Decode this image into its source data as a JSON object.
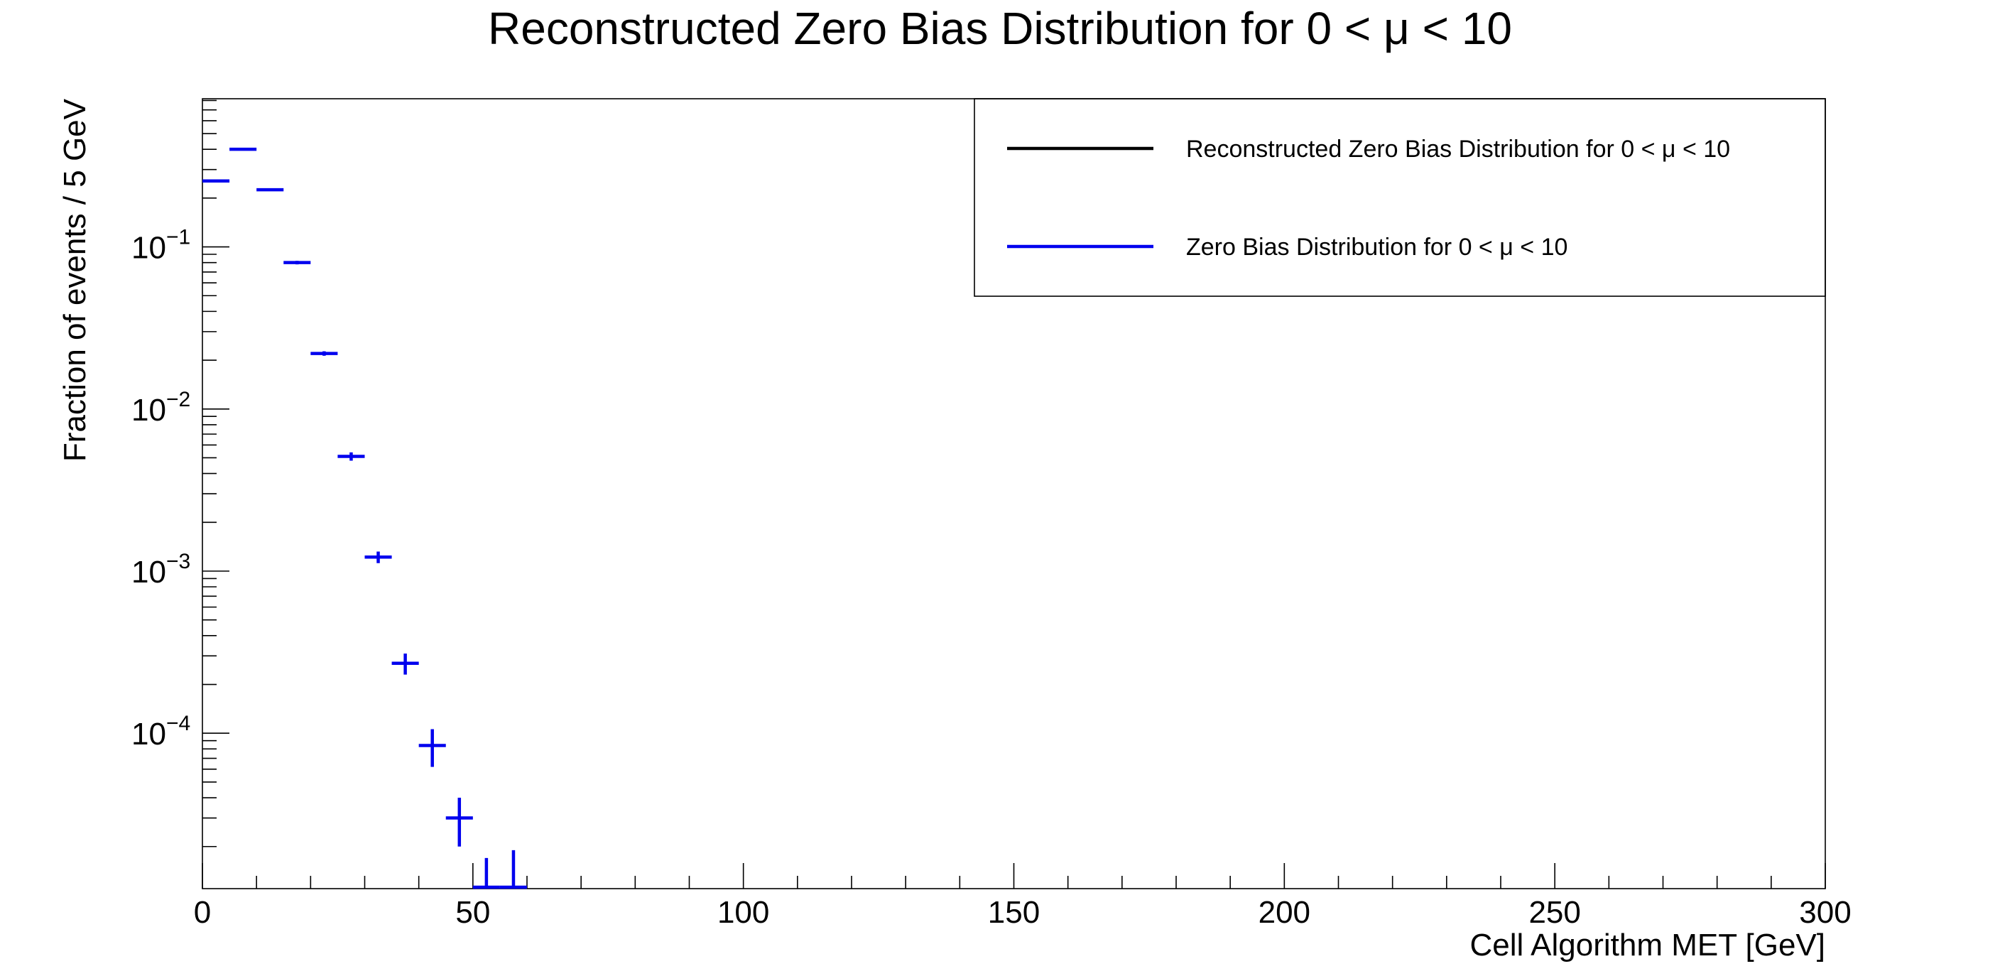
{
  "chart_data": {
    "type": "scatter",
    "title": "Reconstructed Zero Bias Distribution for 0 < μ < 10",
    "xlabel": "Cell Algorithm MET [GeV]",
    "ylabel": "Fraction of events / 5 GeV",
    "xlim": [
      0,
      300
    ],
    "ylim": [
      1.1e-05,
      0.82
    ],
    "yscale": "log",
    "bin_width": 5,
    "x_ticks": [
      {
        "value": 0,
        "label": "0"
      },
      {
        "value": 50,
        "label": "50"
      },
      {
        "value": 100,
        "label": "100"
      },
      {
        "value": 150,
        "label": "150"
      },
      {
        "value": 200,
        "label": "200"
      },
      {
        "value": 250,
        "label": "250"
      },
      {
        "value": 300,
        "label": "300"
      }
    ],
    "y_ticks": [
      {
        "value": 0.1,
        "base": "10",
        "exp": "−1"
      },
      {
        "value": 0.01,
        "base": "10",
        "exp": "−2"
      },
      {
        "value": 0.001,
        "base": "10",
        "exp": "−3"
      },
      {
        "value": 0.0001,
        "base": "10",
        "exp": "−4"
      }
    ],
    "legend": {
      "position": "top-right",
      "entries": [
        {
          "label": "Reconstructed Zero Bias Distribution for 0 < μ < 10",
          "color": "#000000"
        },
        {
          "label": "Zero Bias Distribution for 0 < μ < 10",
          "color": "#0000ee"
        }
      ]
    },
    "series": [
      {
        "name": "Zero Bias Distribution for 0 < μ < 10",
        "color": "#0000ee",
        "points": [
          {
            "x": 2.5,
            "y": 0.255,
            "err": 0.004
          },
          {
            "x": 7.5,
            "y": 0.4,
            "err": 0.005
          },
          {
            "x": 12.5,
            "y": 0.225,
            "err": 0.004
          },
          {
            "x": 17.5,
            "y": 0.08,
            "err": 0.002
          },
          {
            "x": 22.5,
            "y": 0.022,
            "err": 0.0007
          },
          {
            "x": 27.5,
            "y": 0.0051,
            "err": 0.0003
          },
          {
            "x": 32.5,
            "y": 0.00122,
            "err": 0.0001
          },
          {
            "x": 37.5,
            "y": 0.00027,
            "err": 4e-05
          },
          {
            "x": 42.5,
            "y": 8.4e-05,
            "err": 2.2e-05
          },
          {
            "x": 47.5,
            "y": 3e-05,
            "err": 1e-05
          },
          {
            "x": 52.5,
            "y": 1.1e-05,
            "err": 6e-06
          },
          {
            "x": 57.5,
            "y": 1.1e-05,
            "err": 8e-06
          }
        ]
      }
    ]
  }
}
